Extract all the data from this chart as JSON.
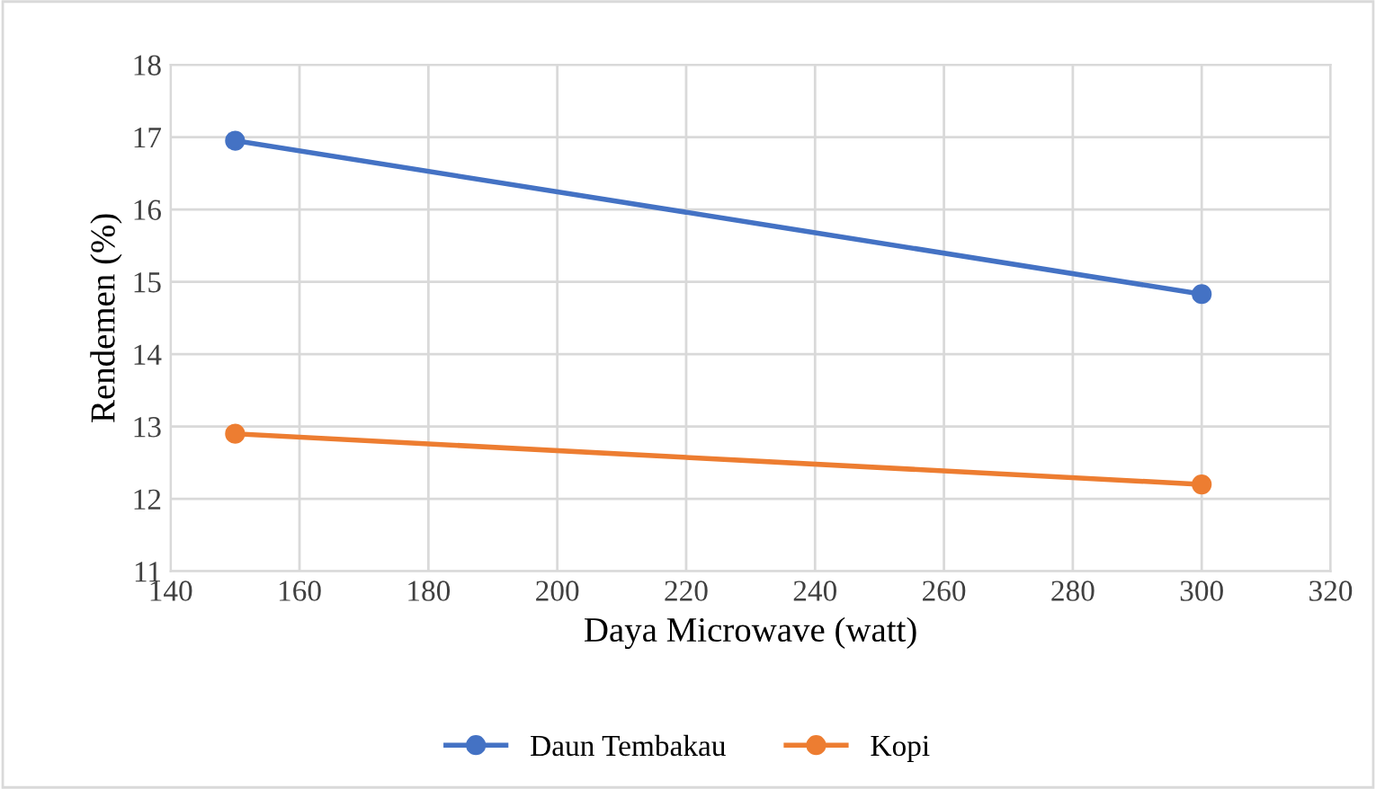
{
  "chart_data": {
    "type": "line",
    "xlabel": "Daya Microwave (watt)",
    "ylabel": "Rendemen (%)",
    "x": [
      150,
      300
    ],
    "series": [
      {
        "name": "Daun Tembakau",
        "color": "#4472c4",
        "values": [
          16.95,
          14.83
        ]
      },
      {
        "name": "Kopi",
        "color": "#ed7d31",
        "values": [
          12.9,
          12.2
        ]
      }
    ],
    "xlim": [
      140,
      320
    ],
    "xticks": [
      140,
      160,
      180,
      200,
      220,
      240,
      260,
      280,
      300,
      320
    ],
    "ylim": [
      11,
      18
    ],
    "yticks": [
      11,
      12,
      13,
      14,
      15,
      16,
      17,
      18
    ],
    "grid": true,
    "legend": "bottom",
    "marker": "circle",
    "line_style": "solid"
  }
}
